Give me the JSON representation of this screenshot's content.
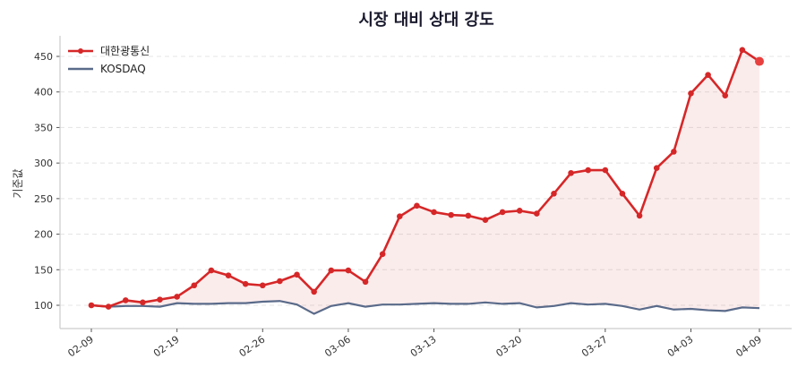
{
  "chart_data": {
    "type": "line",
    "title": "시장 대비 상대 강도",
    "xlabel": "",
    "ylabel": "기준값",
    "ylim": [
      70,
      480
    ],
    "yticks": [
      100,
      150,
      200,
      250,
      300,
      350,
      400,
      450
    ],
    "xtick_labels": [
      {
        "index": 0,
        "label": "02-09"
      },
      {
        "index": 5,
        "label": "02-19"
      },
      {
        "index": 10,
        "label": "02-26"
      },
      {
        "index": 15,
        "label": "03-06"
      },
      {
        "index": 20,
        "label": "03-13"
      },
      {
        "index": 25,
        "label": "03-20"
      },
      {
        "index": 30,
        "label": "03-27"
      },
      {
        "index": 35,
        "label": "04-03"
      },
      {
        "index": 39,
        "label": "04-09"
      }
    ],
    "grid": "horizontal dashed",
    "legend_position": "top-left",
    "series": [
      {
        "name": "대한광통신",
        "color": "#d62728",
        "markers": true,
        "values": [
          100,
          98,
          107,
          104,
          108,
          112,
          128,
          149,
          142,
          130,
          128,
          134,
          143,
          119,
          149,
          149,
          133,
          172,
          225,
          240,
          231,
          227,
          226,
          220,
          231,
          233,
          229,
          257,
          286,
          290,
          290,
          257,
          226,
          293,
          316,
          398,
          424,
          395,
          459,
          443
        ]
      },
      {
        "name": "KOSDAQ",
        "color": "#5a6b8a",
        "markers": false,
        "values": [
          100,
          98,
          99,
          99,
          98,
          103,
          102,
          102,
          103,
          103,
          105,
          106,
          101,
          88,
          99,
          103,
          98,
          101,
          101,
          102,
          103,
          102,
          102,
          104,
          102,
          103,
          97,
          99,
          103,
          101,
          102,
          99,
          94,
          99,
          94,
          95,
          93,
          92,
          97,
          96
        ]
      }
    ]
  }
}
